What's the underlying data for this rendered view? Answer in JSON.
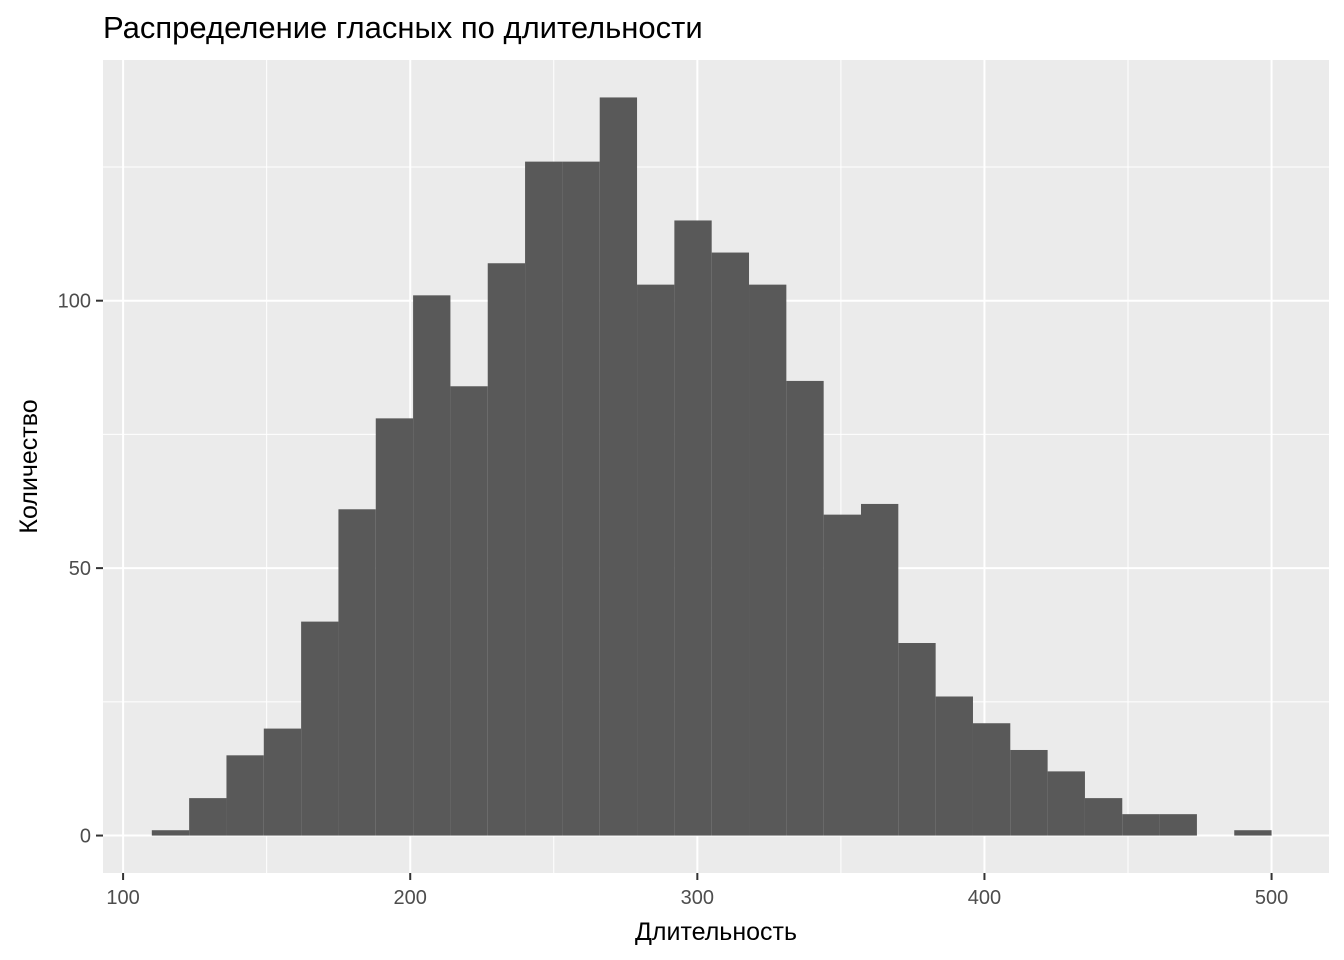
{
  "chart_data": {
    "type": "histogram",
    "title": "Распределение гласных по длительности",
    "xlabel": "Длительность",
    "ylabel": "Количество",
    "xlim": [
      93,
      520
    ],
    "ylim": [
      -7,
      145
    ],
    "x_ticks": [
      100,
      200,
      300,
      400,
      500
    ],
    "x_tick_labels": [
      "100",
      "200",
      "300",
      "400",
      "500"
    ],
    "y_ticks": [
      0,
      50,
      100
    ],
    "y_tick_labels": [
      "0",
      "50",
      "100"
    ],
    "bins": [
      {
        "x0": 110,
        "x1": 123,
        "count": 1
      },
      {
        "x0": 123,
        "x1": 136,
        "count": 7
      },
      {
        "x0": 136,
        "x1": 149,
        "count": 15
      },
      {
        "x0": 149,
        "x1": 162,
        "count": 20
      },
      {
        "x0": 162,
        "x1": 175,
        "count": 40
      },
      {
        "x0": 175,
        "x1": 188,
        "count": 61
      },
      {
        "x0": 188,
        "x1": 201,
        "count": 78
      },
      {
        "x0": 201,
        "x1": 214,
        "count": 101
      },
      {
        "x0": 214,
        "x1": 227,
        "count": 84
      },
      {
        "x0": 227,
        "x1": 240,
        "count": 107
      },
      {
        "x0": 240,
        "x1": 253,
        "count": 126
      },
      {
        "x0": 253,
        "x1": 266,
        "count": 126
      },
      {
        "x0": 266,
        "x1": 279,
        "count": 138
      },
      {
        "x0": 279,
        "x1": 292,
        "count": 103
      },
      {
        "x0": 292,
        "x1": 305,
        "count": 115
      },
      {
        "x0": 305,
        "x1": 318,
        "count": 109
      },
      {
        "x0": 318,
        "x1": 331,
        "count": 103
      },
      {
        "x0": 331,
        "x1": 344,
        "count": 85
      },
      {
        "x0": 344,
        "x1": 357,
        "count": 60
      },
      {
        "x0": 357,
        "x1": 370,
        "count": 62
      },
      {
        "x0": 370,
        "x1": 383,
        "count": 36
      },
      {
        "x0": 383,
        "x1": 396,
        "count": 26
      },
      {
        "x0": 396,
        "x1": 409,
        "count": 21
      },
      {
        "x0": 409,
        "x1": 422,
        "count": 16
      },
      {
        "x0": 422,
        "x1": 435,
        "count": 12
      },
      {
        "x0": 435,
        "x1": 448,
        "count": 7
      },
      {
        "x0": 448,
        "x1": 461,
        "count": 4
      },
      {
        "x0": 461,
        "x1": 474,
        "count": 4
      },
      {
        "x0": 474,
        "x1": 487,
        "count": 0
      },
      {
        "x0": 487,
        "x1": 500,
        "count": 1
      }
    ],
    "bar_color": "#595959",
    "panel_background": "#ebebeb",
    "grid_color": "#ffffff",
    "grid": true,
    "legend": "none"
  }
}
